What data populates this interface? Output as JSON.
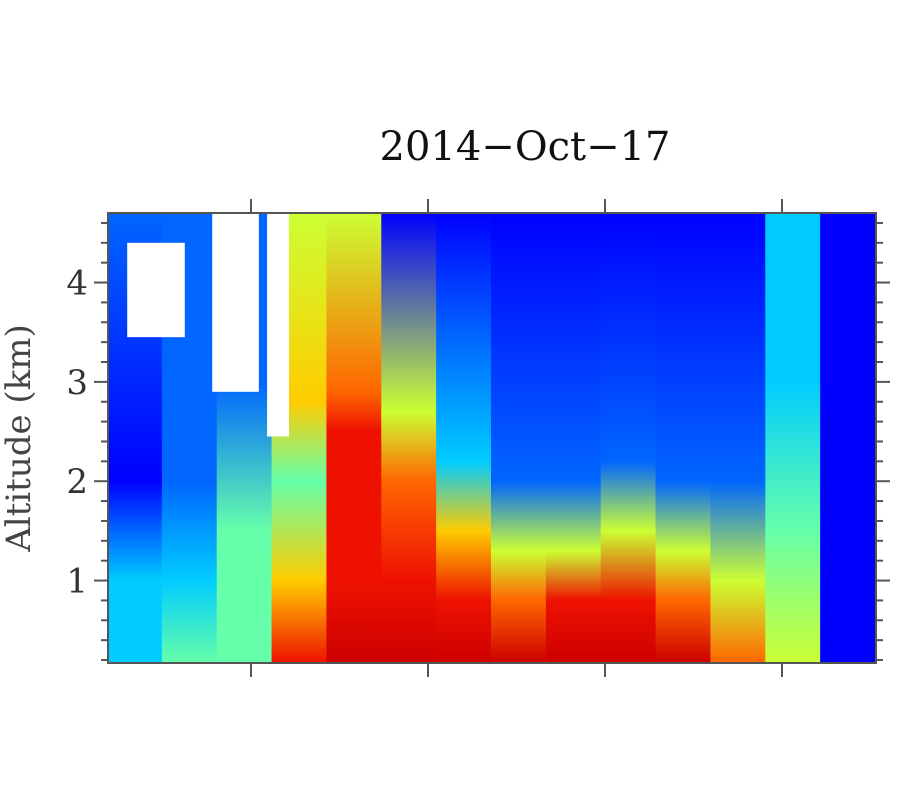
{
  "chart_data": {
    "type": "heatmap",
    "title": "2014−Oct−17",
    "xlabel": "",
    "ylabel": "Altitude (km)",
    "ylim": [
      0.17,
      4.7
    ],
    "y_ticks": [
      "1",
      "2",
      "3",
      "4"
    ],
    "y_tick_values": [
      1,
      2,
      3,
      4
    ],
    "x_tick_labels": [],
    "colormap": [
      "#00008b",
      "#0000ff",
      "#0066ff",
      "#00ccff",
      "#66ffaa",
      "#ccff33",
      "#ffcc00",
      "#ff6600",
      "#ee1100",
      "#cc0000"
    ],
    "nodata_color": "#ffffff",
    "grid": false,
    "value_scale": "0 = low (dark blue), 1 = high (dark red)",
    "columns": [
      {
        "x": 0,
        "profile": [
          [
            0.17,
            0.35
          ],
          [
            1.0,
            0.3
          ],
          [
            2.0,
            0.15
          ],
          [
            4.7,
            0.25
          ]
        ]
      },
      {
        "x": 1,
        "profile": [
          [
            0.17,
            0.4
          ],
          [
            1.0,
            0.35
          ],
          [
            2.0,
            0.2
          ],
          [
            4.7,
            0.25
          ]
        ]
      },
      {
        "x": 2,
        "profile": [
          [
            0.17,
            0.45
          ],
          [
            1.5,
            0.45
          ],
          [
            3.0,
            0.2
          ],
          [
            4.7,
            0.2
          ]
        ]
      },
      {
        "x": 3,
        "profile": [
          [
            0.17,
            0.85
          ],
          [
            1.0,
            0.7
          ],
          [
            2.0,
            0.45
          ],
          [
            2.8,
            0.7
          ],
          [
            4.7,
            0.55
          ]
        ]
      },
      {
        "x": 4,
        "profile": [
          [
            0.17,
            0.95
          ],
          [
            1.0,
            0.9
          ],
          [
            2.5,
            0.85
          ],
          [
            2.9,
            0.75
          ],
          [
            4.7,
            0.5
          ]
        ]
      },
      {
        "x": 5,
        "profile": [
          [
            0.17,
            0.95
          ],
          [
            1.0,
            0.9
          ],
          [
            2.0,
            0.8
          ],
          [
            2.7,
            0.6
          ],
          [
            4.7,
            0.15
          ]
        ]
      },
      {
        "x": 6,
        "profile": [
          [
            0.17,
            0.95
          ],
          [
            0.8,
            0.9
          ],
          [
            1.5,
            0.7
          ],
          [
            2.2,
            0.3
          ],
          [
            4.7,
            0.1
          ]
        ]
      },
      {
        "x": 7,
        "profile": [
          [
            0.17,
            0.95
          ],
          [
            0.8,
            0.8
          ],
          [
            1.3,
            0.6
          ],
          [
            2.0,
            0.2
          ],
          [
            4.7,
            0.1
          ]
        ]
      },
      {
        "x": 8,
        "profile": [
          [
            0.17,
            0.95
          ],
          [
            0.8,
            0.85
          ],
          [
            1.3,
            0.6
          ],
          [
            2.0,
            0.2
          ],
          [
            4.7,
            0.1
          ]
        ]
      },
      {
        "x": 9,
        "profile": [
          [
            0.17,
            0.95
          ],
          [
            0.8,
            0.85
          ],
          [
            1.5,
            0.6
          ],
          [
            2.2,
            0.2
          ],
          [
            4.7,
            0.1
          ]
        ]
      },
      {
        "x": 10,
        "profile": [
          [
            0.17,
            0.95
          ],
          [
            0.8,
            0.8
          ],
          [
            1.3,
            0.55
          ],
          [
            2.0,
            0.2
          ],
          [
            4.7,
            0.1
          ]
        ]
      },
      {
        "x": 11,
        "profile": [
          [
            0.17,
            0.8
          ],
          [
            1.0,
            0.5
          ],
          [
            2.0,
            0.2
          ],
          [
            4.7,
            0.15
          ]
        ]
      },
      {
        "x": 12,
        "profile": [
          [
            0.17,
            0.55
          ],
          [
            1.5,
            0.4
          ],
          [
            3.0,
            0.35
          ],
          [
            4.7,
            0.35
          ]
        ]
      },
      {
        "x": 13,
        "profile": [
          [
            0.17,
            0.15
          ],
          [
            1.5,
            0.1
          ],
          [
            4.7,
            0.15
          ]
        ]
      }
    ],
    "nodata_regions_km": [
      {
        "x0": 0.35,
        "x1": 1.4,
        "y0": 3.45,
        "y1": 4.4
      },
      {
        "x0": 1.9,
        "x1": 2.75,
        "y0": 2.9,
        "y1": 4.7
      },
      {
        "x0": 2.9,
        "x1": 3.3,
        "y0": 2.45,
        "y1": 4.7
      }
    ]
  }
}
